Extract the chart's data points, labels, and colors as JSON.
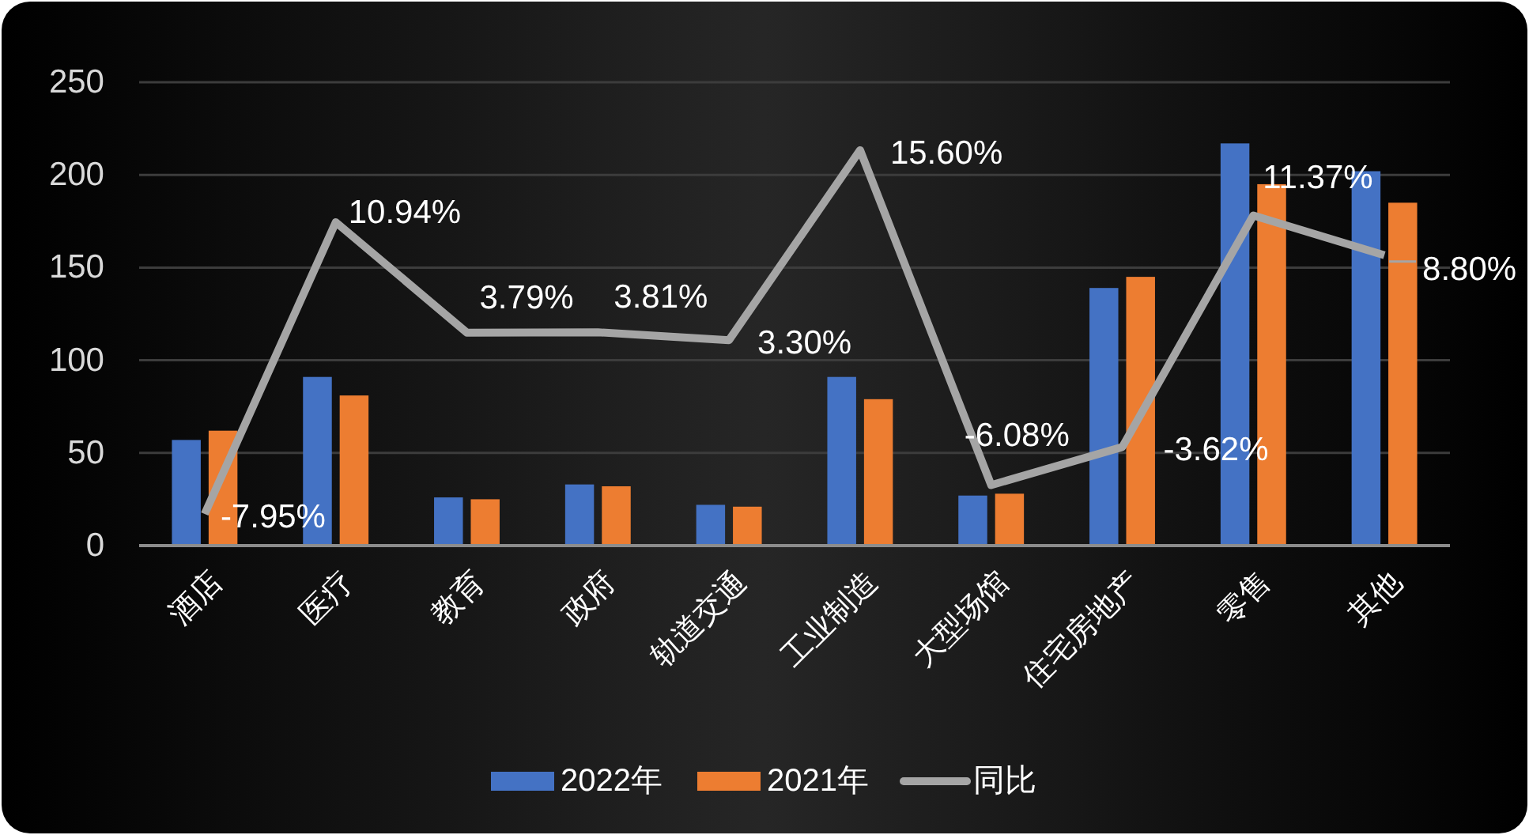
{
  "chart_data": {
    "type": "bar",
    "categories": [
      "酒店",
      "医疗",
      "教育",
      "政府",
      "轨道交通",
      "工业制造",
      "大型场馆",
      "住宅房地产",
      "零售",
      "其他"
    ],
    "series": [
      {
        "name": "2022年",
        "color": "#4472c4",
        "values": [
          57,
          91,
          26,
          33,
          22,
          91,
          27,
          139,
          217,
          202
        ]
      },
      {
        "name": "2021年",
        "color": "#ed7d31",
        "values": [
          62,
          81,
          25,
          32,
          21,
          79,
          28,
          145,
          195,
          185
        ]
      },
      {
        "name": "同比",
        "type": "line",
        "axis": "y2",
        "color": "#a5a5a5",
        "values": [
          -7.95,
          10.94,
          3.79,
          3.81,
          3.3,
          15.6,
          -6.08,
          -3.62,
          11.37,
          8.8
        ],
        "value_labels": [
          "-7.95%",
          "10.94%",
          "3.79%",
          "3.81%",
          "3.30%",
          "15.60%",
          "-6.08%",
          "-3.62%",
          "11.37%",
          "8.80%"
        ]
      }
    ],
    "ylim": [
      0,
      250
    ],
    "yticks": [
      0,
      50,
      100,
      150,
      200,
      250
    ],
    "y2lim": [
      -10,
      20
    ],
    "tick_labels": "xy",
    "grid": "y",
    "legend": "bottom"
  }
}
